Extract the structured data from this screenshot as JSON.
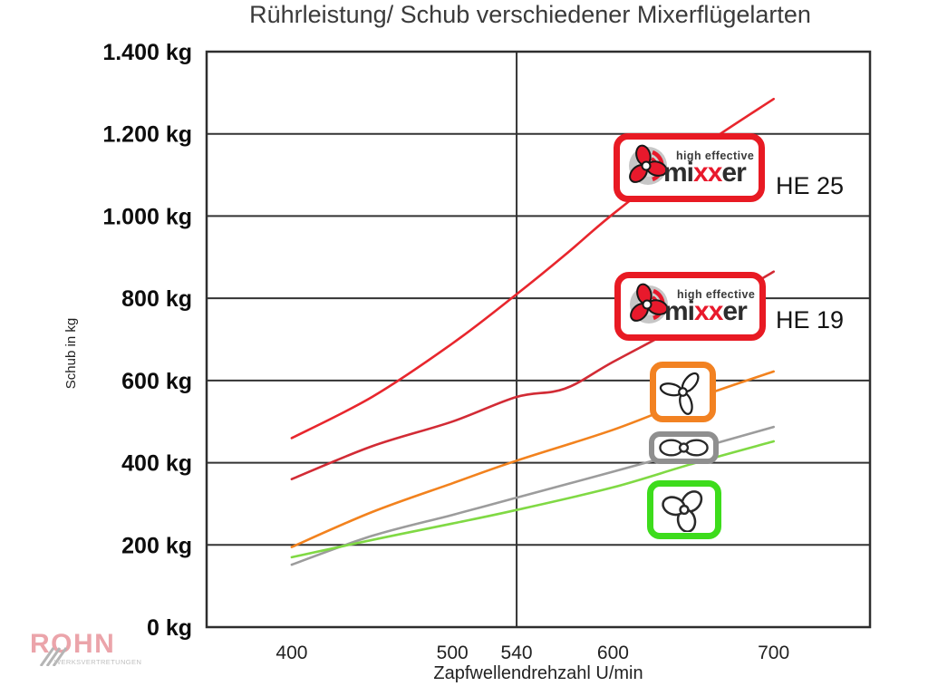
{
  "page": {
    "title": "Rührleistung/ Schub verschiedener Mixerflügelarten"
  },
  "brand_badge": {
    "tagline": "high effective",
    "word": [
      {
        "t": "mi",
        "c": "#2d2d2d"
      },
      {
        "t": "xx",
        "c": "#e8192c"
      },
      {
        "t": "er",
        "c": "#2d2d2d"
      }
    ],
    "border_color": "#e81a23",
    "logo_icon": "mixxer-propeller-logo"
  },
  "watermark": {
    "name": "ROHN",
    "subtitle": "WERKSVERTRETUNGEN",
    "name_color": "#eba4aa",
    "subtitle_color": "#bfbfbf"
  },
  "chart_data": {
    "type": "line",
    "title": "Rührleistung/ Schub verschiedener Mixerflügelarten",
    "xlabel": "Zapfwellendrehzahl U/min",
    "ylabel": "Schub in kg",
    "x_range": [
      347,
      760
    ],
    "y_range": [
      0,
      1400
    ],
    "grid": "horizontal",
    "reference_line_x": 540,
    "legend_position": "inside-right",
    "x_ticks": [
      {
        "value": 400,
        "label": "400"
      },
      {
        "value": 500,
        "label": "500"
      },
      {
        "value": 540,
        "label": "540"
      },
      {
        "value": 600,
        "label": "600"
      },
      {
        "value": 700,
        "label": "700"
      }
    ],
    "y_ticks": [
      {
        "value": 0,
        "label": "0 kg"
      },
      {
        "value": 200,
        "label": "200 kg"
      },
      {
        "value": 400,
        "label": "400 kg"
      },
      {
        "value": 600,
        "label": "600 kg"
      },
      {
        "value": 800,
        "label": "800 kg"
      },
      {
        "value": 1000,
        "label": "1.000 kg"
      },
      {
        "value": 1200,
        "label": "1.200 kg"
      },
      {
        "value": 1400,
        "label": "1.400 kg"
      }
    ],
    "series": [
      {
        "name": "HE 25",
        "legend_icon": "mixxer-badge",
        "color": "#e8262d",
        "points": [
          [
            400,
            460
          ],
          [
            450,
            560
          ],
          [
            500,
            690
          ],
          [
            540,
            810
          ],
          [
            570,
            905
          ],
          [
            600,
            1005
          ],
          [
            650,
            1155
          ],
          [
            700,
            1285
          ]
        ]
      },
      {
        "name": "HE 19",
        "legend_icon": "mixxer-badge",
        "color": "#d22b35",
        "points": [
          [
            400,
            360
          ],
          [
            450,
            440
          ],
          [
            500,
            500
          ],
          [
            540,
            560
          ],
          [
            570,
            580
          ],
          [
            600,
            645
          ],
          [
            650,
            750
          ],
          [
            700,
            865
          ]
        ]
      },
      {
        "name": "orange-3-blade-propeller",
        "legend_icon": "orange-propeller-icon",
        "color": "#f2821e",
        "points": [
          [
            400,
            195
          ],
          [
            450,
            280
          ],
          [
            500,
            350
          ],
          [
            540,
            405
          ],
          [
            600,
            480
          ],
          [
            650,
            555
          ],
          [
            700,
            622
          ]
        ]
      },
      {
        "name": "gray-2-blade-propeller",
        "legend_icon": "gray-propeller-icon",
        "color": "#9c9c9c",
        "points": [
          [
            400,
            152
          ],
          [
            450,
            222
          ],
          [
            500,
            273
          ],
          [
            540,
            315
          ],
          [
            600,
            378
          ],
          [
            650,
            432
          ],
          [
            700,
            487
          ]
        ]
      },
      {
        "name": "green-3-blade-propeller",
        "legend_icon": "green-propeller-icon",
        "color": "#80d944",
        "points": [
          [
            400,
            170
          ],
          [
            450,
            212
          ],
          [
            500,
            252
          ],
          [
            540,
            285
          ],
          [
            600,
            340
          ],
          [
            650,
            398
          ],
          [
            700,
            452
          ]
        ]
      }
    ],
    "series_labels": {
      "he25": "HE 25",
      "he19": "HE 19"
    }
  }
}
